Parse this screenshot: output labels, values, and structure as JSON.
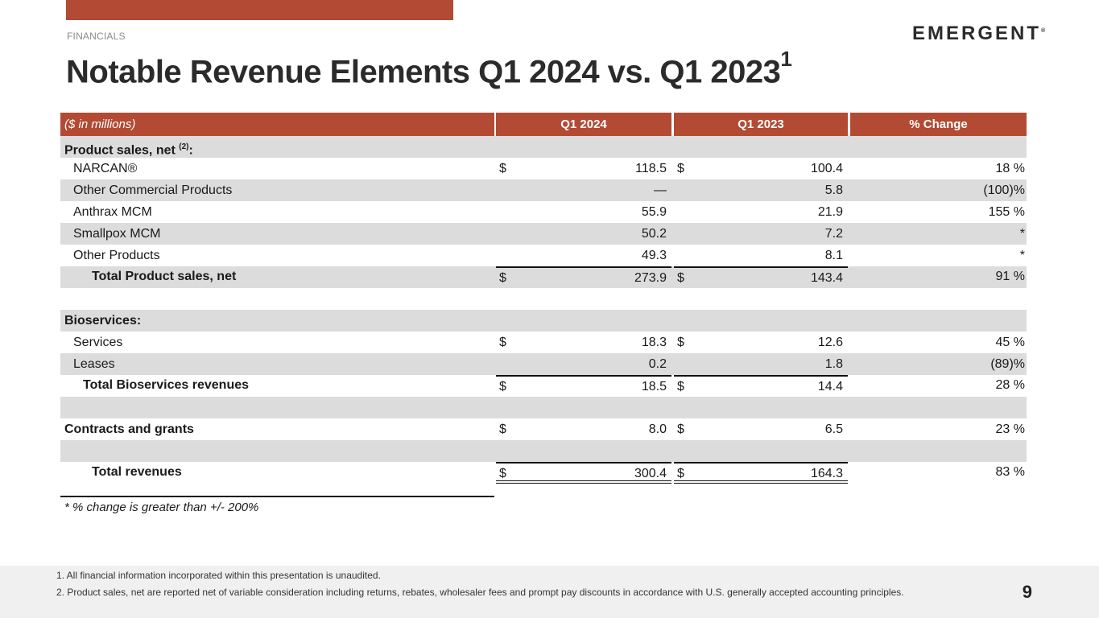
{
  "section": "FINANCIALS",
  "logo": "EMERGENT",
  "title": "Notable Revenue Elements Q1 2024 vs. Q1 2023",
  "title_sup": "1",
  "table": {
    "headers": [
      "($ in millions)",
      "Q1 2024",
      "Q1 2023",
      "% Change"
    ],
    "rows": [
      {
        "label": "Product sales, net ",
        "sup": "(2)",
        "suffix": ":",
        "bold": true,
        "gray": true,
        "indent": 0
      },
      {
        "label": "NARCAN®",
        "q24": "118.5",
        "q23": "100.4",
        "pct": "18 %",
        "dollar": true,
        "indent": 1
      },
      {
        "label": "Other Commercial Products",
        "q24": "—",
        "q23": "5.8",
        "pct": "(100)%",
        "gray": true,
        "indent": 1
      },
      {
        "label": "Anthrax MCM",
        "q24": "55.9",
        "q23": "21.9",
        "pct": "155 %",
        "indent": 1
      },
      {
        "label": "Smallpox MCM",
        "q24": "50.2",
        "q23": "7.2",
        "pct": "*",
        "gray": true,
        "indent": 1
      },
      {
        "label": "Other Products",
        "q24": "49.3",
        "q23": "8.1",
        "pct": "*",
        "indent": 1
      },
      {
        "label": "Total Product sales, net",
        "q24": "273.9",
        "q23": "143.4",
        "pct": "91 %",
        "dollar": true,
        "bold": true,
        "gray": true,
        "indent": 3,
        "topline": true
      },
      {
        "label": "",
        "indent": 0
      },
      {
        "label": "Bioservices:",
        "bold": true,
        "gray": true,
        "indent": 0
      },
      {
        "label": "Services",
        "q24": "18.3",
        "q23": "12.6",
        "pct": "45 %",
        "dollar": true,
        "indent": 1
      },
      {
        "label": "Leases",
        "q24": "0.2",
        "q23": "1.8",
        "pct": "(89)%",
        "gray": true,
        "indent": 1
      },
      {
        "label": "Total Bioservices revenues",
        "q24": "18.5",
        "q23": "14.4",
        "pct": "28 %",
        "dollar": true,
        "bold": true,
        "indent": 2,
        "topline": true
      },
      {
        "label": "",
        "gray": true,
        "indent": 0
      },
      {
        "label": "Contracts and grants",
        "q24": "8.0",
        "q23": "6.5",
        "pct": "23 %",
        "dollar": true,
        "bold": true,
        "indent": 0
      },
      {
        "label": "",
        "gray": true,
        "indent": 0
      },
      {
        "label": "Total revenues",
        "q24": "300.4",
        "q23": "164.3",
        "pct": "83 %",
        "dollar": true,
        "bold": true,
        "indent": 3,
        "topline": true,
        "double": true
      }
    ],
    "footnote": "* % change is greater than +/- 200%"
  },
  "notes": [
    "1. All financial information incorporated within this presentation is unaudited.",
    "2. Product sales, net are reported net of variable consideration including returns, rebates, wholesaler fees and prompt pay discounts in accordance with U.S. generally accepted accounting principles."
  ],
  "page_number": "9",
  "colors": {
    "accent": "#b24a34",
    "row_gray": "#dcdcdc"
  }
}
